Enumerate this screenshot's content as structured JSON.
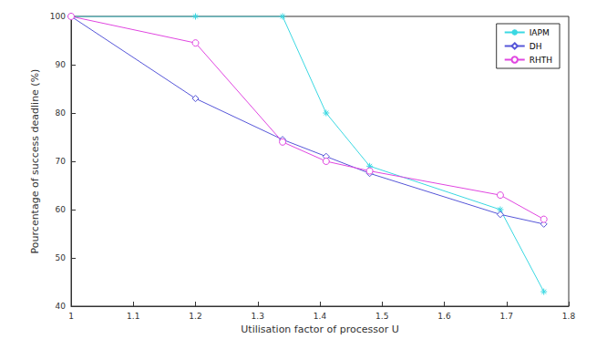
{
  "chart_data": {
    "type": "line",
    "x_label": "Utilisation factor of processor U",
    "y_label": "Pourcentage of success deadline (%)",
    "x": [
      1,
      1.2,
      1.34,
      1.41,
      1.48,
      1.69,
      1.76
    ],
    "series": [
      {
        "name": "IAPM",
        "color": "#3ad8e2",
        "marker": "asterisk",
        "values": [
          100,
          100,
          100,
          80,
          69,
          60,
          43
        ]
      },
      {
        "name": "DH",
        "color": "#5656d8",
        "marker": "diamond",
        "values": [
          100,
          83,
          74.5,
          71,
          67.5,
          59,
          57
        ]
      },
      {
        "name": "RHTH",
        "color": "#e046e0",
        "marker": "circle",
        "values": [
          100,
          94.5,
          74,
          70,
          68,
          63,
          58
        ]
      }
    ],
    "xlim": [
      1,
      1.8
    ],
    "xticks": [
      1,
      1.1,
      1.2,
      1.3,
      1.4,
      1.5,
      1.6,
      1.7,
      1.8
    ],
    "ylim": [
      40,
      100
    ],
    "yticks": [
      40,
      50,
      60,
      70,
      80,
      90,
      100
    ],
    "grid": false,
    "legend": "upper right"
  }
}
